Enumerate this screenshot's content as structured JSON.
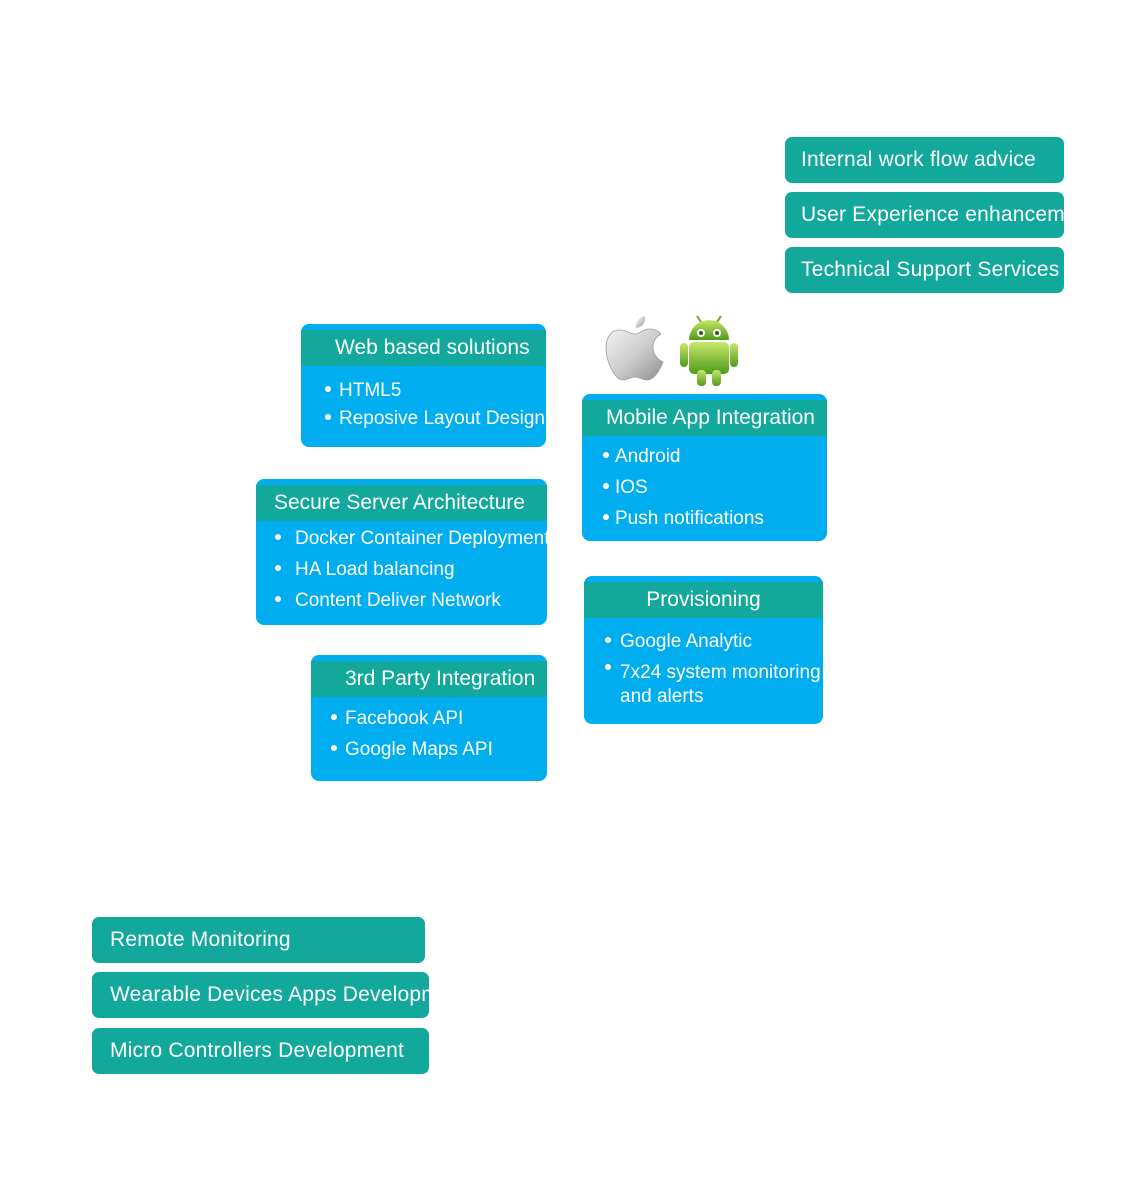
{
  "services_top_right": [
    "Internal work flow advice",
    "User Experience enhancement",
    "Technical Support Services"
  ],
  "services_bottom_left": [
    "Remote Monitoring",
    "Wearable Devices Apps Development",
    "Micro Controllers Development"
  ],
  "cards": {
    "web": {
      "title": "Web based solutions",
      "items": [
        "HTML5",
        "Reposive Layout Design"
      ]
    },
    "secure": {
      "title": "Secure Server Architecture",
      "items": [
        "Docker Container Deployment",
        "HA Load balancing",
        "Content Deliver Network"
      ]
    },
    "third_party": {
      "title": "3rd Party Integration",
      "items": [
        "Facebook API",
        "Google Maps API"
      ]
    },
    "mobile": {
      "title": "Mobile App Integration",
      "items": [
        "Android",
        "IOS",
        "Push notifications"
      ]
    },
    "provisioning": {
      "title": "Provisioning",
      "items": [
        "Google Analytic",
        "7x24 system monitoring",
        "and alerts"
      ]
    }
  },
  "icons": [
    "apple-logo-icon",
    "android-robot-icon"
  ],
  "colors": {
    "teal": "#13a89c",
    "blue": "#00adef",
    "text": "#ffffff"
  }
}
